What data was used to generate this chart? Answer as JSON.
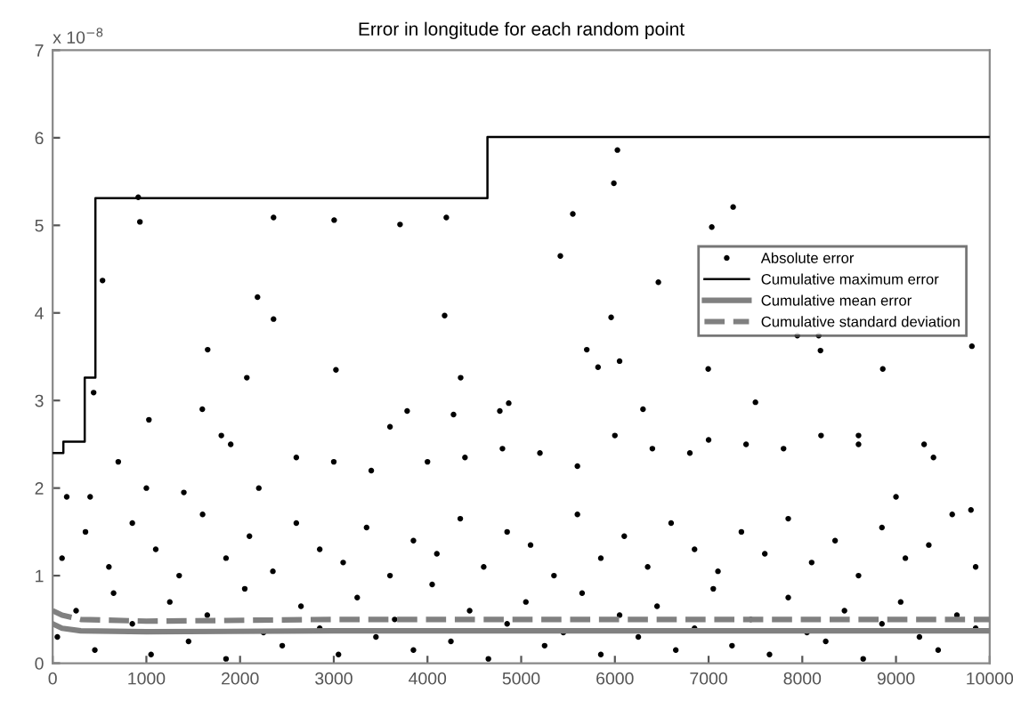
{
  "chart_data": {
    "type": "scatter",
    "title": "Error in longitude for each random point",
    "annotations": [
      "x 10$^{−8}$"
    ],
    "xlim": [
      0,
      10000
    ],
    "xticks": [
      0,
      1000,
      2000,
      3000,
      4000,
      5000,
      6000,
      7000,
      8000,
      9000,
      10000
    ],
    "ylim": [
      0,
      7
    ],
    "yticks": [
      0,
      1,
      2,
      3,
      4,
      5,
      6,
      7
    ],
    "legend": "right",
    "grid": false,
    "series": [
      {
        "name": "Absolute error",
        "marker": "circle",
        "color": "#000000",
        "x": [
          913,
          931,
          2357,
          3004,
          3707,
          4201,
          532,
          2186,
          2357,
          4183,
          1654,
          2072,
          3023,
          4354,
          437,
          1597,
          3783,
          4278,
          4772,
          4867,
          1027,
          5551,
          5418,
          5989,
          6027,
          5700,
          5820,
          5960,
          6050,
          6464,
          6996,
          7034,
          7262,
          7500,
          7947,
          8175,
          8194,
          8859,
          9810,
          6300,
          8600,
          9300,
          150,
          400,
          700,
          1000,
          1400,
          1800,
          1900,
          2200,
          2600,
          3000,
          3400,
          3600,
          4000,
          4400,
          4800,
          5200,
          5600,
          6000,
          6400,
          6800,
          7000,
          7400,
          7800,
          8200,
          8600,
          9000,
          9400,
          9800,
          100,
          350,
          600,
          850,
          1100,
          1350,
          1600,
          1850,
          2100,
          2350,
          2600,
          2850,
          3100,
          3350,
          3600,
          3850,
          4100,
          4350,
          4600,
          4850,
          5100,
          5350,
          5600,
          5850,
          6100,
          6350,
          6600,
          6850,
          7100,
          7350,
          7600,
          7850,
          8100,
          8350,
          8600,
          8850,
          9100,
          9350,
          9600,
          9850,
          50,
          250,
          450,
          650,
          850,
          1050,
          1250,
          1450,
          1650,
          1850,
          2050,
          2250,
          2450,
          2650,
          2850,
          3050,
          3250,
          3450,
          3650,
          3850,
          4050,
          4250,
          4450,
          4650,
          4850,
          5050,
          5250,
          5450,
          5650,
          5850,
          6050,
          6250,
          6450,
          6650,
          6850,
          7050,
          7250,
          7450,
          7650,
          7850,
          8050,
          8250,
          8450,
          8650,
          8850,
          9050,
          9250,
          9450,
          9650,
          9850
        ],
        "values": [
          5.32,
          5.04,
          5.09,
          5.06,
          5.01,
          5.09,
          4.37,
          4.18,
          3.93,
          3.97,
          3.58,
          3.26,
          3.35,
          3.26,
          3.09,
          2.9,
          2.88,
          2.84,
          2.88,
          2.97,
          2.78,
          5.13,
          4.65,
          5.48,
          5.86,
          3.58,
          3.38,
          3.95,
          3.45,
          4.35,
          3.36,
          4.98,
          5.21,
          2.98,
          3.74,
          3.74,
          3.57,
          3.36,
          3.62,
          2.9,
          2.6,
          2.5,
          1.9,
          1.9,
          2.3,
          2.0,
          1.95,
          2.6,
          2.5,
          2.0,
          2.35,
          2.3,
          2.2,
          2.7,
          2.3,
          2.35,
          2.45,
          2.4,
          2.25,
          2.6,
          2.45,
          2.4,
          2.55,
          2.5,
          2.45,
          2.6,
          2.5,
          1.9,
          2.35,
          1.75,
          1.2,
          1.5,
          1.1,
          1.6,
          1.3,
          1.0,
          1.7,
          1.2,
          1.45,
          1.05,
          1.6,
          1.3,
          1.15,
          1.55,
          1.0,
          1.4,
          1.25,
          1.65,
          1.1,
          1.5,
          1.35,
          1.0,
          1.7,
          1.2,
          1.45,
          1.1,
          1.6,
          1.3,
          1.05,
          1.5,
          1.25,
          1.65,
          1.15,
          1.4,
          1.0,
          1.55,
          1.2,
          1.35,
          1.7,
          1.1,
          0.3,
          0.6,
          0.15,
          0.8,
          0.45,
          0.1,
          0.7,
          0.25,
          0.55,
          0.05,
          0.85,
          0.35,
          0.2,
          0.65,
          0.4,
          0.1,
          0.75,
          0.3,
          0.5,
          0.15,
          0.9,
          0.25,
          0.6,
          0.05,
          0.45,
          0.7,
          0.2,
          0.35,
          0.8,
          0.1,
          0.55,
          0.3,
          0.65,
          0.15,
          0.4,
          0.85,
          0.2,
          0.5,
          0.1,
          0.75,
          0.35,
          0.25,
          0.6,
          0.05,
          0.45,
          0.7,
          0.3,
          0.15,
          0.55,
          0.4
        ]
      },
      {
        "name": "Cumulative maximum error",
        "type": "step",
        "color": "#000000",
        "line_style": "solid",
        "x": [
          0,
          114,
          342,
          456,
          4640,
          10000
        ],
        "values": [
          2.4,
          2.53,
          3.26,
          5.31,
          6.01,
          6.01
        ]
      },
      {
        "name": "Cumulative mean error",
        "type": "line",
        "color": "#808080",
        "line_style": "solid",
        "x": [
          0,
          100,
          300,
          1000,
          3000,
          6000,
          10000
        ],
        "values": [
          0.45,
          0.4,
          0.37,
          0.36,
          0.37,
          0.37,
          0.37
        ]
      },
      {
        "name": "Cumulative standard deviation",
        "type": "line",
        "color": "#808080",
        "line_style": "dashed",
        "x": [
          0,
          100,
          300,
          1000,
          3000,
          6000,
          10000
        ],
        "values": [
          0.6,
          0.55,
          0.5,
          0.48,
          0.5,
          0.5,
          0.5
        ]
      }
    ]
  }
}
